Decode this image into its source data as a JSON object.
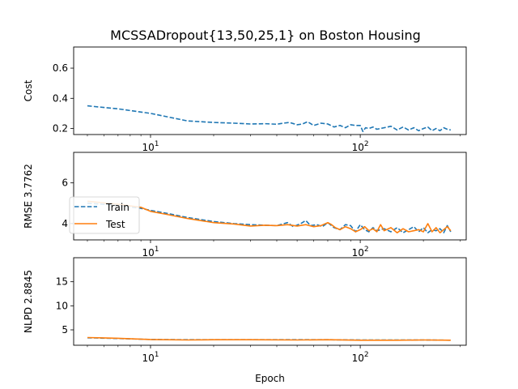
{
  "title": "MCSSADropout{13,50,25,1} on Boston Housing",
  "colors": {
    "train": "#1f77b4",
    "test": "#ff7f0e"
  },
  "legend": {
    "train_label": "Train",
    "test_label": "Test",
    "placement": "center-left of middle panel"
  },
  "chart_data": [
    {
      "type": "line",
      "ylabel": "Cost",
      "xlabel": "",
      "xscale": "log",
      "xlim": [
        4.3,
        320
      ],
      "ylim": [
        0.16,
        0.74
      ],
      "yticks": [
        "0.2",
        "0.4",
        "0.6"
      ],
      "ytick_values": [
        0.2,
        0.4,
        0.6
      ],
      "xticks": [
        "10^1",
        "10^2"
      ],
      "xtick_values": [
        10,
        100
      ],
      "series": [
        {
          "name": "Train",
          "style": "dashed",
          "x": [
            5,
            7,
            10,
            15,
            20,
            25,
            30,
            35,
            40,
            43,
            46,
            50,
            53,
            56,
            60,
            65,
            70,
            75,
            80,
            85,
            90,
            95,
            100,
            103,
            106,
            110,
            115,
            120,
            130,
            140,
            150,
            160,
            170,
            180,
            190,
            200,
            210,
            220,
            230,
            240,
            250,
            260,
            270
          ],
          "values": [
            0.35,
            0.33,
            0.3,
            0.25,
            0.24,
            0.235,
            0.23,
            0.232,
            0.228,
            0.235,
            0.24,
            0.225,
            0.23,
            0.245,
            0.22,
            0.235,
            0.23,
            0.21,
            0.22,
            0.205,
            0.225,
            0.22,
            0.22,
            0.18,
            0.205,
            0.2,
            0.21,
            0.195,
            0.205,
            0.215,
            0.19,
            0.21,
            0.19,
            0.205,
            0.185,
            0.2,
            0.21,
            0.185,
            0.2,
            0.185,
            0.205,
            0.195,
            0.19
          ]
        }
      ]
    },
    {
      "type": "line",
      "ylabel": "RMSE 3.7762",
      "xlabel": "",
      "xscale": "log",
      "xlim": [
        4.3,
        320
      ],
      "ylim": [
        3.2,
        7.5
      ],
      "yticks": [
        "4",
        "6"
      ],
      "ytick_values": [
        4,
        6
      ],
      "xticks": [
        "10^1",
        "10^2"
      ],
      "xtick_values": [
        10,
        100
      ],
      "series": [
        {
          "name": "Train",
          "style": "dashed",
          "x": [
            5,
            7,
            9,
            10,
            12,
            15,
            20,
            25,
            30,
            35,
            40,
            45,
            48,
            52,
            55,
            58,
            62,
            66,
            70,
            75,
            80,
            85,
            90,
            95,
            100,
            105,
            110,
            115,
            120,
            130,
            140,
            150,
            160,
            170,
            180,
            190,
            200,
            210,
            220,
            230,
            240,
            250,
            260,
            270
          ],
          "values": [
            5.0,
            4.9,
            4.75,
            4.65,
            4.5,
            4.3,
            4.1,
            4.0,
            3.95,
            3.92,
            3.9,
            4.05,
            3.85,
            4.0,
            4.15,
            3.9,
            3.95,
            3.85,
            4.05,
            3.8,
            3.7,
            3.95,
            3.9,
            3.6,
            3.95,
            3.7,
            3.6,
            3.8,
            3.65,
            3.75,
            3.6,
            3.8,
            3.55,
            3.7,
            3.85,
            3.6,
            3.8,
            3.55,
            3.7,
            3.65,
            3.75,
            3.55,
            3.9,
            3.6
          ]
        },
        {
          "name": "Test",
          "style": "solid",
          "x": [
            5,
            7,
            9,
            10,
            12,
            15,
            20,
            25,
            30,
            35,
            40,
            45,
            50,
            55,
            60,
            65,
            70,
            73,
            76,
            80,
            85,
            90,
            95,
            100,
            105,
            110,
            115,
            120,
            125,
            130,
            140,
            150,
            160,
            170,
            180,
            190,
            200,
            210,
            220,
            230,
            240,
            250,
            260,
            270
          ],
          "values": [
            5.1,
            4.95,
            4.8,
            4.6,
            4.45,
            4.25,
            4.05,
            3.98,
            3.88,
            3.92,
            3.9,
            3.95,
            3.88,
            3.95,
            3.85,
            3.9,
            4.05,
            3.95,
            3.8,
            3.7,
            3.85,
            3.75,
            3.6,
            3.7,
            3.85,
            3.65,
            3.75,
            3.6,
            3.95,
            3.65,
            3.8,
            3.55,
            3.75,
            3.6,
            3.65,
            3.7,
            3.6,
            4.0,
            3.6,
            3.8,
            3.55,
            3.7,
            3.85,
            3.65
          ]
        }
      ]
    },
    {
      "type": "line",
      "ylabel": "NLPD 2.8845",
      "xlabel": "Epoch",
      "xscale": "log",
      "xlim": [
        4.3,
        320
      ],
      "ylim": [
        1.8,
        20
      ],
      "yticks": [
        "5",
        "10",
        "15"
      ],
      "ytick_values": [
        5,
        10,
        15
      ],
      "xticks": [
        "10^1",
        "10^2"
      ],
      "xtick_values": [
        10,
        100
      ],
      "series": [
        {
          "name": "Train",
          "style": "dashed",
          "x": [
            5,
            7,
            10,
            15,
            20,
            30,
            50,
            70,
            100,
            150,
            200,
            270
          ],
          "values": [
            3.35,
            3.2,
            3.0,
            2.95,
            2.95,
            2.95,
            2.95,
            2.95,
            2.9,
            2.9,
            2.9,
            2.85
          ]
        },
        {
          "name": "Test",
          "style": "solid",
          "x": [
            5,
            7,
            10,
            15,
            20,
            30,
            50,
            70,
            100,
            150,
            200,
            270
          ],
          "values": [
            3.4,
            3.25,
            3.0,
            2.9,
            2.95,
            2.95,
            2.9,
            2.95,
            2.85,
            2.85,
            2.9,
            2.85
          ]
        }
      ]
    }
  ]
}
